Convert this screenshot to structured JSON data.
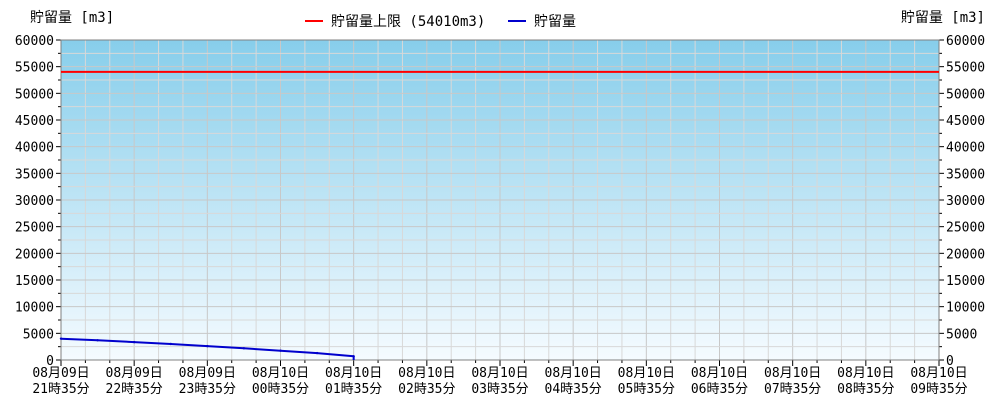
{
  "chart_data": {
    "type": "line",
    "y_left_label": "貯留量 [m3]",
    "y_right_label": "貯留量 [m3]",
    "ylim": [
      0,
      60000
    ],
    "y_ticks": [
      0,
      5000,
      10000,
      15000,
      20000,
      25000,
      30000,
      35000,
      40000,
      45000,
      50000,
      55000,
      60000
    ],
    "x_ticks": [
      {
        "line1": "08月09日",
        "line2": "21時35分"
      },
      {
        "line1": "08月09日",
        "line2": "22時35分"
      },
      {
        "line1": "08月09日",
        "line2": "23時35分"
      },
      {
        "line1": "08月10日",
        "line2": "00時35分"
      },
      {
        "line1": "08月10日",
        "line2": "01時35分"
      },
      {
        "line1": "08月10日",
        "line2": "02時35分"
      },
      {
        "line1": "08月10日",
        "line2": "03時35分"
      },
      {
        "line1": "08月10日",
        "line2": "04時35分"
      },
      {
        "line1": "08月10日",
        "line2": "05時35分"
      },
      {
        "line1": "08月10日",
        "line2": "06時35分"
      },
      {
        "line1": "08月10日",
        "line2": "07時35分"
      },
      {
        "line1": "08月10日",
        "line2": "08時35分"
      },
      {
        "line1": "08月10日",
        "line2": "09時35分"
      }
    ],
    "xlim_hours": [
      0,
      12
    ],
    "legend_placement": "top-center",
    "grid": true,
    "background_gradient": {
      "top": "#87ceeb",
      "bottom": "#f5fbff"
    },
    "series": [
      {
        "name": "貯留量上限 (54010m3)",
        "color": "#ff0000",
        "x_hours": [
          0,
          12
        ],
        "values": [
          54010,
          54010
        ]
      },
      {
        "name": "貯留量",
        "color": "#0000cd",
        "x_hours": [
          0,
          0.5,
          1,
          1.5,
          2,
          2.5,
          3,
          3.5,
          4
        ],
        "values": [
          4000,
          3700,
          3350,
          3000,
          2600,
          2200,
          1750,
          1300,
          700
        ]
      }
    ]
  }
}
